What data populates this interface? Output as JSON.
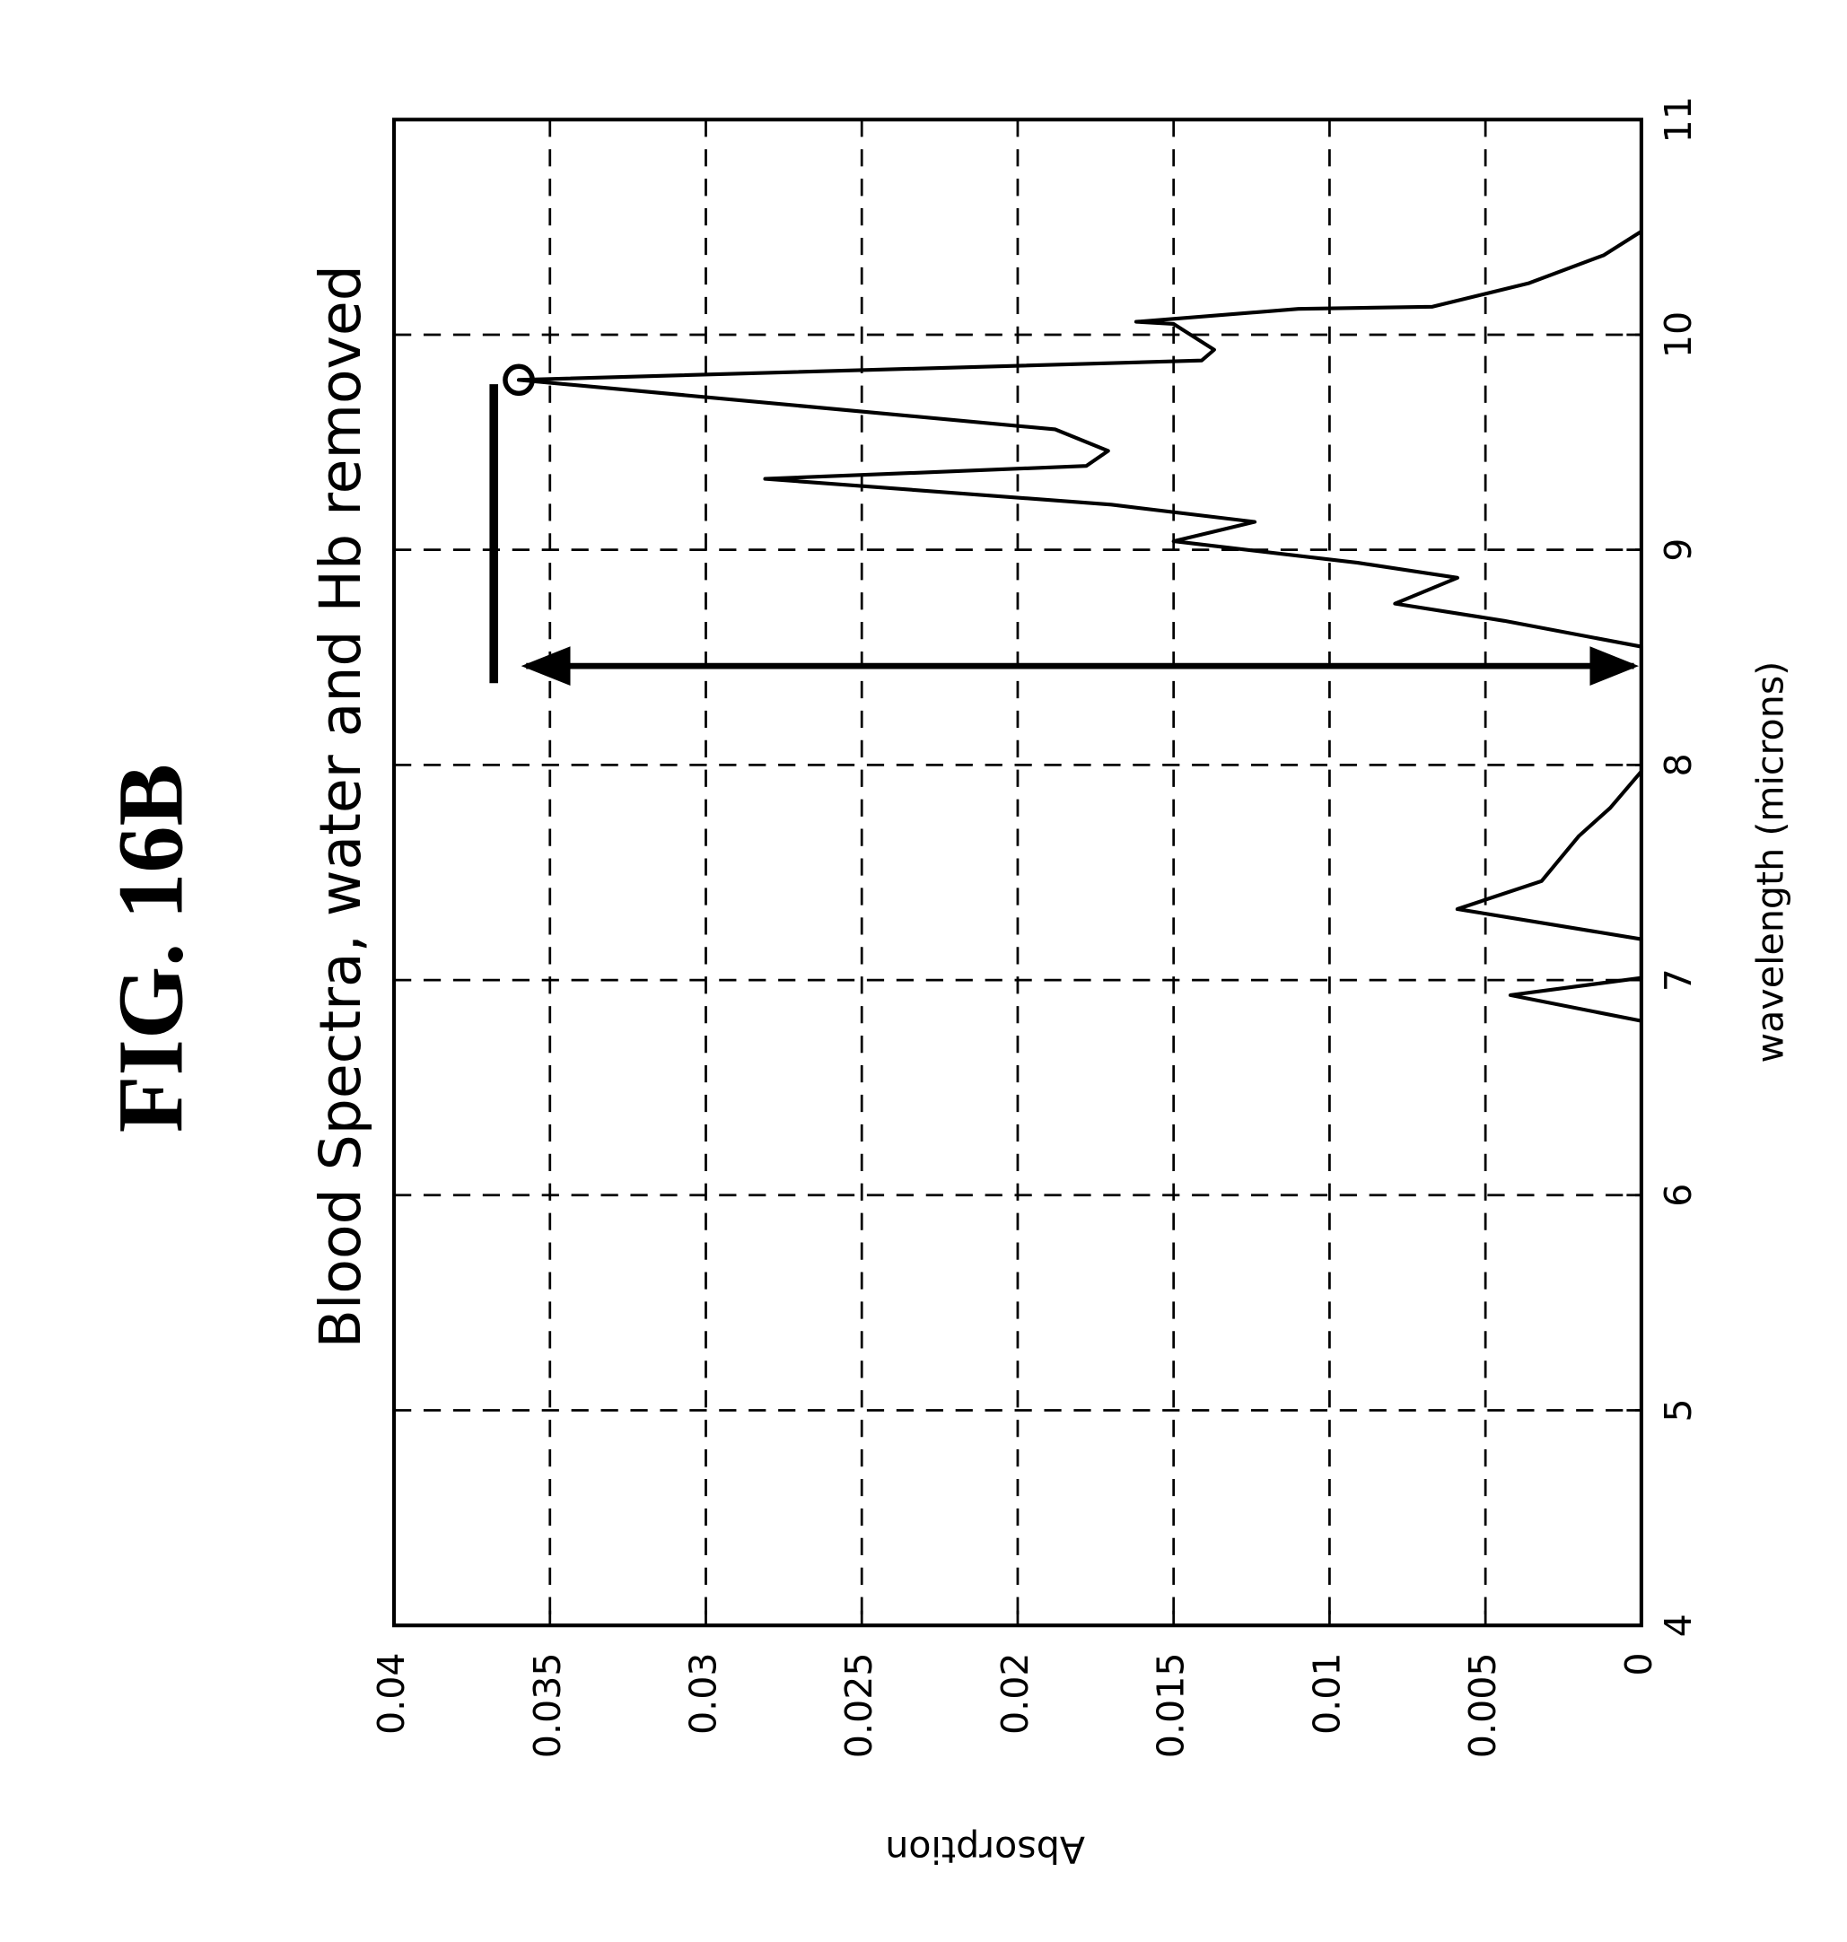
{
  "chart_data": {
    "type": "line",
    "figure_label": "FIG. 16B",
    "title": "Blood Spectra, water and Hb removed",
    "xlabel": "wavelength (microns)",
    "ylabel": "Absorption",
    "xlim": [
      4,
      11
    ],
    "xticks": [
      4,
      5,
      6,
      7,
      8,
      9,
      10,
      11
    ],
    "ylim": [
      0,
      0.04
    ],
    "yticks": [
      0,
      0.005,
      0.01,
      0.015,
      0.02,
      0.025,
      0.03,
      0.035,
      0.04
    ],
    "grid": true,
    "series": [
      {
        "color": "#000000",
        "x": [
          6.81,
          6.93,
          7.01,
          7.19,
          7.33,
          7.46,
          7.67,
          7.8,
          7.97,
          8.27,
          8.55,
          8.67,
          8.75,
          8.87,
          8.94,
          9.04,
          9.13,
          9.21,
          9.33,
          9.39,
          9.46,
          9.56,
          9.79,
          9.88,
          9.93,
          10.05,
          10.06,
          10.12,
          10.13,
          10.24,
          10.37,
          10.48
        ],
        "values": [
          0,
          0.0042,
          0,
          0,
          0.0059,
          0.0032,
          0.002,
          0.001,
          0,
          0,
          0,
          0.0044,
          0.0079,
          0.0059,
          0.0091,
          0.015,
          0.0124,
          0.017,
          0.0281,
          0.0178,
          0.0171,
          0.0188,
          0.036,
          0.0141,
          0.0137,
          0.015,
          0.0162,
          0.011,
          0.0067,
          0.0036,
          0.0012,
          0
        ]
      }
    ],
    "peak_marker": {
      "x": 9.79,
      "y": 0.036
    },
    "bracket": {
      "x": [
        8.38,
        9.77
      ],
      "y": 0.0368
    },
    "arrow": {
      "x": 8.46,
      "y": [
        0,
        0.036
      ]
    }
  }
}
